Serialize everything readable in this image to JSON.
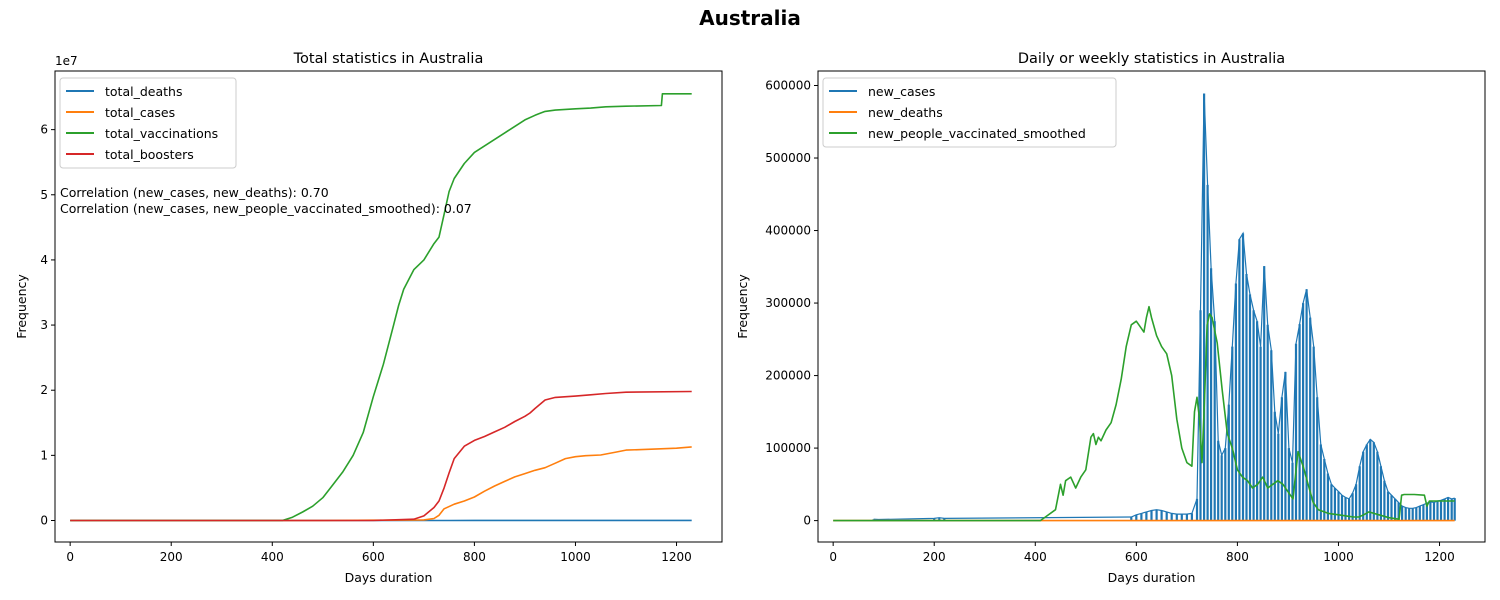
{
  "figure": {
    "suptitle": "Australia"
  },
  "chart_data": [
    {
      "type": "line",
      "title": "Total statistics in Australia",
      "xlabel": "Days duration",
      "ylabel": "Frequency",
      "y_offset_label": "1e7",
      "xlim": [
        -30,
        1290
      ],
      "ylim": [
        -3300000,
        69000000
      ],
      "xticks": [
        0,
        200,
        400,
        600,
        800,
        1000,
        1200
      ],
      "yticks": [
        0,
        10000000,
        20000000,
        30000000,
        40000000,
        50000000,
        60000000
      ],
      "ytick_labels": [
        "0",
        "1",
        "2",
        "3",
        "4",
        "5",
        "6"
      ],
      "grid": false,
      "legend_position": "upper left",
      "annotations": [
        "Correlation (new_cases, new_deaths): 0.70",
        "Correlation (new_cases, new_people_vaccinated_smoothed): 0.07"
      ],
      "series": [
        {
          "name": "total_deaths",
          "color": "#1f77b4",
          "x": [
            0,
            700,
            750,
            800,
            1000,
            1230
          ],
          "y": [
            0,
            0,
            5000,
            10000,
            15000,
            20000
          ]
        },
        {
          "name": "total_cases",
          "color": "#ff7f0e",
          "x": [
            0,
            500,
            600,
            700,
            720,
            730,
            740,
            760,
            780,
            800,
            820,
            840,
            860,
            880,
            900,
            920,
            940,
            960,
            980,
            1000,
            1020,
            1050,
            1080,
            1100,
            1150,
            1200,
            1230
          ],
          "y": [
            0,
            0,
            50000,
            100000,
            300000,
            800000,
            1800000,
            2500000,
            3000000,
            3600000,
            4500000,
            5300000,
            6000000,
            6700000,
            7200000,
            7700000,
            8100000,
            8800000,
            9500000,
            9800000,
            9950000,
            10050000,
            10500000,
            10800000,
            10950000,
            11100000,
            11300000
          ]
        },
        {
          "name": "total_vaccinations",
          "color": "#2ca02c",
          "x": [
            0,
            420,
            440,
            460,
            480,
            500,
            520,
            540,
            560,
            580,
            600,
            620,
            640,
            650,
            660,
            680,
            700,
            720,
            730,
            740,
            750,
            760,
            780,
            800,
            820,
            840,
            860,
            880,
            900,
            920,
            930,
            940,
            960,
            1000,
            1030,
            1060,
            1100,
            1170,
            1172,
            1230
          ],
          "y": [
            0,
            0,
            500000,
            1300000,
            2200000,
            3500000,
            5500000,
            7500000,
            10000000,
            13500000,
            19000000,
            24000000,
            30000000,
            33000000,
            35500000,
            38500000,
            40000000,
            42500000,
            43500000,
            47000000,
            50500000,
            52500000,
            54800000,
            56500000,
            57500000,
            58500000,
            59500000,
            60500000,
            61500000,
            62200000,
            62500000,
            62800000,
            63000000,
            63200000,
            63300000,
            63500000,
            63600000,
            63700000,
            65500000,
            65500000
          ]
        },
        {
          "name": "total_boosters",
          "color": "#d62728",
          "x": [
            0,
            600,
            680,
            700,
            720,
            730,
            740,
            750,
            760,
            780,
            800,
            820,
            840,
            860,
            880,
            900,
            910,
            920,
            940,
            960,
            1000,
            1030,
            1060,
            1100,
            1230
          ],
          "y": [
            0,
            0,
            200000,
            700000,
            2000000,
            3000000,
            5000000,
            7300000,
            9500000,
            11400000,
            12300000,
            12900000,
            13600000,
            14300000,
            15200000,
            16000000,
            16500000,
            17200000,
            18500000,
            18900000,
            19100000,
            19300000,
            19500000,
            19700000,
            19800000
          ]
        }
      ]
    },
    {
      "type": "line",
      "title": "Daily or weekly statistics in Australia",
      "xlabel": "Days duration",
      "ylabel": "Frequency",
      "xlim": [
        -30,
        1290
      ],
      "ylim": [
        -29500,
        620000
      ],
      "xticks": [
        0,
        200,
        400,
        600,
        800,
        1000,
        1200
      ],
      "yticks": [
        0,
        100000,
        200000,
        300000,
        400000,
        500000,
        600000
      ],
      "grid": false,
      "legend_position": "upper left",
      "series": [
        {
          "name": "new_cases",
          "color": "#1f77b4",
          "render": "spikes",
          "x": [
            80,
            90,
            200,
            210,
            220,
            590,
            600,
            610,
            620,
            630,
            640,
            650,
            660,
            670,
            680,
            690,
            700,
            710,
            720,
            727,
            734,
            741,
            748,
            755,
            762,
            769,
            776,
            783,
            790,
            797,
            804,
            811,
            818,
            825,
            832,
            839,
            846,
            853,
            860,
            867,
            874,
            881,
            888,
            895,
            902,
            909,
            916,
            923,
            930,
            937,
            944,
            951,
            958,
            965,
            972,
            979,
            986,
            993,
            1000,
            1007,
            1014,
            1021,
            1028,
            1035,
            1042,
            1049,
            1056,
            1063,
            1070,
            1077,
            1084,
            1091,
            1098,
            1105,
            1112,
            1119,
            1126,
            1133,
            1140,
            1147,
            1154,
            1161,
            1168,
            1175,
            1182,
            1189,
            1196,
            1203,
            1210,
            1217,
            1224,
            1230
          ],
          "y": [
            2000,
            1500,
            3000,
            4000,
            3000,
            5000,
            8000,
            10000,
            12000,
            14000,
            15000,
            14000,
            12000,
            10000,
            9000,
            9000,
            9000,
            10000,
            30000,
            290000,
            589000,
            463000,
            348000,
            275000,
            110000,
            90000,
            100000,
            160000,
            240000,
            327000,
            388000,
            396000,
            340000,
            312000,
            290000,
            275000,
            240000,
            351000,
            270000,
            235000,
            150000,
            120000,
            170000,
            205000,
            100000,
            80000,
            244000,
            271000,
            300000,
            319000,
            280000,
            240000,
            170000,
            105000,
            85000,
            65000,
            50000,
            45000,
            40000,
            35000,
            32000,
            30000,
            38000,
            50000,
            75000,
            95000,
            105000,
            112000,
            108000,
            95000,
            75000,
            55000,
            40000,
            35000,
            30000,
            25000,
            20000,
            18000,
            17000,
            17000,
            18000,
            20000,
            22000,
            24000,
            26000,
            25000,
            27000,
            28000,
            30000,
            32000,
            30000,
            31000
          ]
        },
        {
          "name": "new_deaths",
          "color": "#ff7f0e",
          "x": [
            0,
            1230
          ],
          "y": [
            0,
            0
          ]
        },
        {
          "name": "new_people_vaccinated_smoothed",
          "color": "#2ca02c",
          "x": [
            0,
            410,
            420,
            440,
            450,
            455,
            460,
            470,
            480,
            490,
            500,
            510,
            515,
            520,
            525,
            530,
            540,
            550,
            560,
            570,
            580,
            590,
            600,
            610,
            615,
            620,
            625,
            630,
            640,
            650,
            660,
            670,
            680,
            690,
            700,
            710,
            715,
            720,
            725,
            730,
            735,
            740,
            745,
            750,
            760,
            770,
            780,
            790,
            800,
            810,
            820,
            830,
            840,
            850,
            860,
            870,
            880,
            890,
            900,
            910,
            920,
            930,
            940,
            950,
            960,
            980,
            1000,
            1020,
            1030,
            1040,
            1050,
            1060,
            1080,
            1100,
            1110,
            1120,
            1125,
            1130,
            1150,
            1170,
            1175,
            1180,
            1200,
            1230
          ],
          "y": [
            0,
            0,
            5000,
            15000,
            50000,
            35000,
            55000,
            60000,
            45000,
            60000,
            70000,
            115000,
            120000,
            105000,
            115000,
            110000,
            125000,
            135000,
            160000,
            195000,
            240000,
            270000,
            275000,
            265000,
            260000,
            280000,
            295000,
            280000,
            255000,
            240000,
            230000,
            200000,
            140000,
            100000,
            80000,
            75000,
            150000,
            170000,
            140000,
            80000,
            170000,
            270000,
            285000,
            280000,
            245000,
            180000,
            120000,
            100000,
            70000,
            60000,
            55000,
            45000,
            50000,
            60000,
            45000,
            50000,
            55000,
            50000,
            40000,
            30000,
            95000,
            75000,
            50000,
            25000,
            15000,
            10000,
            8000,
            6000,
            5000,
            5000,
            8000,
            12000,
            8000,
            4000,
            3000,
            2000,
            35000,
            36000,
            36000,
            35000,
            20000,
            27000,
            27000,
            27000
          ]
        }
      ]
    }
  ]
}
